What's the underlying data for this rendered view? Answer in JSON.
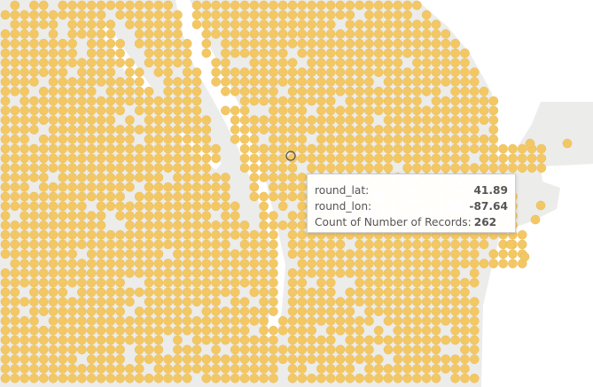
{
  "map": {
    "dot_color": "#f3c864",
    "dot_stroke": "#e2b54f",
    "land_color": "#ececea",
    "water_color": "#ffffff",
    "selected_mark": {
      "round_lat": 41.89,
      "round_lon": -87.64
    }
  },
  "tooltip": {
    "rows": [
      {
        "label": "round_lat:",
        "value": "41.89"
      },
      {
        "label": "round_lon:",
        "value": "-87.64"
      },
      {
        "label": "Count of Number of Records:",
        "value": "262"
      }
    ]
  }
}
